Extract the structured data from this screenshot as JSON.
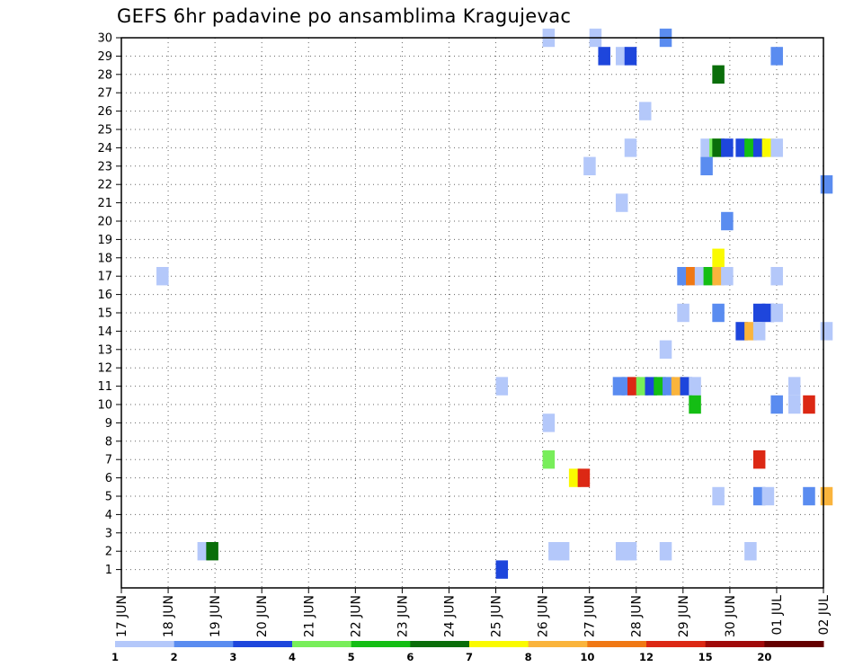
{
  "chart_data": {
    "type": "heatmap",
    "title": "GEFS 6hr padavine po ansamblima Kragujevac",
    "xlabel": "",
    "ylabel": "",
    "x_ticks": [
      "17 JUN",
      "18 JUN",
      "19 JUN",
      "20 JUN",
      "21 JUN",
      "22 JUN",
      "23 JUN",
      "24 JUN",
      "25 JUN",
      "26 JUN",
      "27 JUN",
      "28 JUN",
      "29 JUN",
      "30 JUN",
      "01 JUL",
      "02 JUL"
    ],
    "x_range_days": [
      0,
      15
    ],
    "time_step_hours": 6,
    "y_ticks": [
      1,
      2,
      3,
      4,
      5,
      6,
      7,
      8,
      9,
      10,
      11,
      12,
      13,
      14,
      15,
      16,
      17,
      18,
      19,
      20,
      21,
      22,
      23,
      24,
      25,
      26,
      27,
      28,
      29,
      30
    ],
    "ylim": [
      0,
      30
    ],
    "grid": true,
    "legend_position": "bottom",
    "legend": {
      "levels": [
        "1",
        "2",
        "3",
        "4",
        "5",
        "6",
        "7",
        "8",
        "10",
        "12",
        "15",
        "20"
      ],
      "colors": [
        "#b4c8fa",
        "#5a8cf0",
        "#1e46dc",
        "#78ee5a",
        "#14be14",
        "#0a6e0a",
        "#fafa00",
        "#fab43c",
        "#f07814",
        "#dc2814",
        "#a00a0a",
        "#640000"
      ]
    },
    "cells": [
      {
        "m": 30,
        "t": 36.0,
        "c": 0
      },
      {
        "m": 30,
        "t": 40.0,
        "c": 0
      },
      {
        "m": 30,
        "t": 46.0,
        "c": 1
      },
      {
        "m": 29,
        "t": 40.75,
        "c": 2
      },
      {
        "m": 29,
        "t": 42.25,
        "c": 0
      },
      {
        "m": 29,
        "t": 43.0,
        "c": 2
      },
      {
        "m": 29,
        "t": 55.5,
        "c": 1
      },
      {
        "m": 28,
        "t": 50.5,
        "c": 5
      },
      {
        "m": 26,
        "t": 44.25,
        "c": 0
      },
      {
        "m": 24,
        "t": 43.0,
        "c": 0
      },
      {
        "m": 24,
        "t": 49.5,
        "c": 0
      },
      {
        "m": 24,
        "t": 50.25,
        "c": 3
      },
      {
        "m": 24,
        "t": 50.5,
        "c": 5
      },
      {
        "m": 24,
        "t": 51.25,
        "c": 2
      },
      {
        "m": 24,
        "t": 52.5,
        "c": 2
      },
      {
        "m": 24,
        "t": 53.25,
        "c": 4
      },
      {
        "m": 24,
        "t": 54.0,
        "c": 2
      },
      {
        "m": 24,
        "t": 54.75,
        "c": 6
      },
      {
        "m": 24,
        "t": 55.5,
        "c": 0
      },
      {
        "m": 23,
        "t": 39.5,
        "c": 0
      },
      {
        "m": 23,
        "t": 49.5,
        "c": 1
      },
      {
        "m": 22,
        "t": 59.75,
        "c": 1
      },
      {
        "m": 21,
        "t": 42.25,
        "c": 0
      },
      {
        "m": 20,
        "t": 51.25,
        "c": 1
      },
      {
        "m": 18,
        "t": 50.5,
        "c": 6
      },
      {
        "m": 17,
        "t": 3.0,
        "c": 0
      },
      {
        "m": 17,
        "t": 47.5,
        "c": 1
      },
      {
        "m": 17,
        "t": 48.25,
        "c": 8
      },
      {
        "m": 17,
        "t": 49.0,
        "c": 0
      },
      {
        "m": 17,
        "t": 49.75,
        "c": 4
      },
      {
        "m": 17,
        "t": 50.5,
        "c": 7
      },
      {
        "m": 17,
        "t": 51.25,
        "c": 0
      },
      {
        "m": 17,
        "t": 55.5,
        "c": 0
      },
      {
        "m": 15,
        "t": 47.5,
        "c": 0
      },
      {
        "m": 15,
        "t": 50.5,
        "c": 1
      },
      {
        "m": 15,
        "t": 54.0,
        "c": 2
      },
      {
        "m": 15,
        "t": 54.75,
        "c": 2
      },
      {
        "m": 15,
        "t": 55.5,
        "c": 0
      },
      {
        "m": 14,
        "t": 52.5,
        "c": 2
      },
      {
        "m": 14,
        "t": 53.25,
        "c": 7
      },
      {
        "m": 14,
        "t": 54.0,
        "c": 0
      },
      {
        "m": 14,
        "t": 59.75,
        "c": 0
      },
      {
        "m": 13,
        "t": 46.0,
        "c": 0
      },
      {
        "m": 11,
        "t": 32.0,
        "c": 0
      },
      {
        "m": 11,
        "t": 42.0,
        "c": 1
      },
      {
        "m": 11,
        "t": 42.75,
        "c": 1
      },
      {
        "m": 11,
        "t": 43.25,
        "c": 9
      },
      {
        "m": 11,
        "t": 44.0,
        "c": 3
      },
      {
        "m": 11,
        "t": 44.75,
        "c": 2
      },
      {
        "m": 11,
        "t": 45.5,
        "c": 4
      },
      {
        "m": 11,
        "t": 46.25,
        "c": 1
      },
      {
        "m": 11,
        "t": 47.0,
        "c": 7
      },
      {
        "m": 11,
        "t": 47.75,
        "c": 2
      },
      {
        "m": 11,
        "t": 48.5,
        "c": 0
      },
      {
        "m": 11,
        "t": 57.0,
        "c": 0
      },
      {
        "m": 10,
        "t": 48.5,
        "c": 4
      },
      {
        "m": 10,
        "t": 55.5,
        "c": 1
      },
      {
        "m": 10,
        "t": 57.0,
        "c": 0
      },
      {
        "m": 10,
        "t": 58.25,
        "c": 9
      },
      {
        "m": 9,
        "t": 36.0,
        "c": 0
      },
      {
        "m": 7,
        "t": 36.0,
        "c": 3
      },
      {
        "m": 7,
        "t": 54.0,
        "c": 9
      },
      {
        "m": 6,
        "t": 38.25,
        "c": 6
      },
      {
        "m": 6,
        "t": 39.0,
        "c": 9
      },
      {
        "m": 5,
        "t": 50.5,
        "c": 0
      },
      {
        "m": 5,
        "t": 54.0,
        "c": 1
      },
      {
        "m": 5,
        "t": 54.75,
        "c": 0
      },
      {
        "m": 5,
        "t": 58.25,
        "c": 1
      },
      {
        "m": 5,
        "t": 59.75,
        "c": 7
      },
      {
        "m": 2,
        "t": 6.5,
        "c": 0
      },
      {
        "m": 2,
        "t": 7.25,
        "c": 5
      },
      {
        "m": 2,
        "t": 36.5,
        "c": 0
      },
      {
        "m": 2,
        "t": 37.25,
        "c": 0
      },
      {
        "m": 2,
        "t": 42.25,
        "c": 0
      },
      {
        "m": 2,
        "t": 43.0,
        "c": 0
      },
      {
        "m": 2,
        "t": 46.0,
        "c": 0
      },
      {
        "m": 2,
        "t": 53.25,
        "c": 0
      },
      {
        "m": 1,
        "t": 32.0,
        "c": 2
      }
    ]
  }
}
